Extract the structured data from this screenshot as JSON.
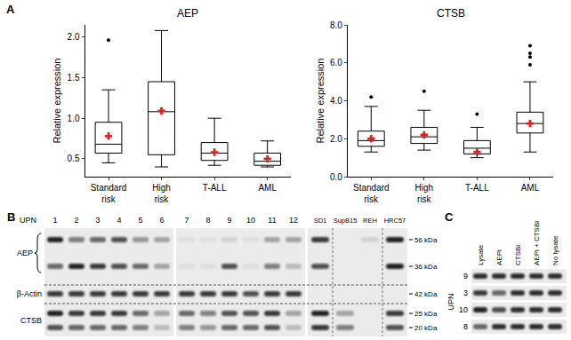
{
  "chart_panel": "A",
  "chart_data": [
    {
      "type": "box",
      "title": "AEP",
      "y_label": "Relative expression",
      "categories": [
        "Standard risk",
        "High risk",
        "T-ALL",
        "AML"
      ],
      "min": [
        0.45,
        0.4,
        0.42,
        0.4
      ],
      "q1": [
        0.57,
        0.55,
        0.48,
        0.42
      ],
      "median": [
        0.68,
        1.08,
        0.57,
        0.47
      ],
      "q3": [
        0.95,
        1.45,
        0.7,
        0.57
      ],
      "max": [
        1.35,
        2.08,
        1.0,
        0.72
      ],
      "mean": [
        0.78,
        1.09,
        0.58,
        0.5
      ],
      "outliers": [
        [
          1.96
        ],
        [],
        [],
        []
      ],
      "color": "#000000",
      "ylim": [
        0.28,
        2.15
      ],
      "yticks": [
        0.5,
        {
          "value": 1,
          "label": "1.0"
        },
        1.5,
        {
          "value": 2,
          "label": "2.0"
        }
      ],
      "grid": false
    },
    {
      "type": "box",
      "title": "CTSB",
      "y_label": "Relative expression",
      "categories": [
        "Standard risk",
        "High risk",
        "T-ALL",
        "AML"
      ],
      "min": [
        1.3,
        1.4,
        1.0,
        1.3
      ],
      "q1": [
        1.6,
        1.75,
        1.2,
        2.3
      ],
      "median": [
        1.9,
        2.1,
        1.5,
        2.8
      ],
      "q3": [
        2.4,
        2.6,
        1.9,
        3.4
      ],
      "max": [
        3.7,
        3.5,
        2.6,
        5.0
      ],
      "mean": [
        2.0,
        2.2,
        1.3,
        2.8
      ],
      "outliers": [
        [
          4.2
        ],
        [
          4.5
        ],
        [
          3.3
        ],
        [
          5.9,
          6.3,
          6.5,
          6.9
        ]
      ],
      "color": "#000000",
      "ylim": [
        0,
        8
      ],
      "yticks": [
        {
          "value": 0,
          "label": "0.0"
        },
        {
          "value": 2,
          "label": "2.0"
        },
        {
          "value": 4,
          "label": "4.0"
        },
        {
          "value": 6,
          "label": "6.0"
        },
        {
          "value": 8,
          "label": "8.0"
        }
      ],
      "grid": false
    }
  ],
  "blots": [
    {
      "panel": "B",
      "lane_header": "UPN",
      "lanes": [
        1,
        2,
        3,
        4,
        5,
        6,
        7,
        8,
        9,
        10,
        11,
        12
      ],
      "cell_lines": [
        "SD1",
        "SupB15",
        "REH",
        "HRC57"
      ],
      "rows": [
        "AEP",
        "β-Actin",
        "CTSB"
      ],
      "markers": [
        {
          "label": "56 kDa",
          "lanes": [
            0.9,
            0.5,
            0.6,
            0.7,
            0.4,
            0.3,
            0.05,
            0.05,
            0.1,
            0.05,
            0.3,
            0.3
          ],
          "cell_lines": [
            0.8,
            0.0,
            0.1,
            0.9
          ]
        },
        {
          "label": "36 kDa",
          "lanes": [
            0.6,
            0.9,
            0.8,
            0.7,
            0.6,
            0.3,
            0.05,
            0.05,
            0.7,
            0.05,
            0.5,
            0.2
          ],
          "cell_lines": [
            0.7,
            0.0,
            0.0,
            0.9
          ]
        },
        {
          "label": "42 kDa",
          "lanes": [
            0.8,
            0.8,
            0.8,
            0.8,
            0.8,
            0.8,
            0.8,
            0.8,
            0.8,
            0.7,
            0.8,
            0.8
          ],
          "cell_lines": [
            null,
            null,
            null,
            null
          ]
        },
        {
          "label": "25 kDa",
          "lanes": [
            0.9,
            0.8,
            0.8,
            0.8,
            0.6,
            0.3,
            0.6,
            0.5,
            0.7,
            0.7,
            0.8,
            0.3
          ],
          "cell_lines": [
            0.9,
            0.3,
            0.0,
            0.8
          ]
        },
        {
          "label": "20 kDa",
          "lanes": [
            0.7,
            0.6,
            0.6,
            0.6,
            0.5,
            0.2,
            0.5,
            0.4,
            0.6,
            0.6,
            0.7,
            0.2
          ],
          "cell_lines": [
            0.8,
            0.5,
            0.0,
            0.7
          ]
        }
      ]
    },
    {
      "panel": "C",
      "row_header": "UPN",
      "lanes": [
        "Lysate",
        "AEPi",
        "CTSBi",
        "AEPi + CTSBi",
        "No lysate"
      ],
      "rows": [
        {
          "label": 9,
          "lanes": [
            0.85,
            0.85,
            0.85,
            0.85,
            0.85
          ]
        },
        {
          "label": 3,
          "lanes": [
            0.8,
            0.6,
            0.85,
            0.85,
            0.85
          ]
        },
        {
          "label": 10,
          "lanes": [
            0.9,
            0.7,
            0.85,
            0.85,
            0.85
          ]
        },
        {
          "label": 8,
          "lanes": [
            0.6,
            0.85,
            0.85,
            0.85,
            0.85
          ]
        }
      ]
    }
  ]
}
